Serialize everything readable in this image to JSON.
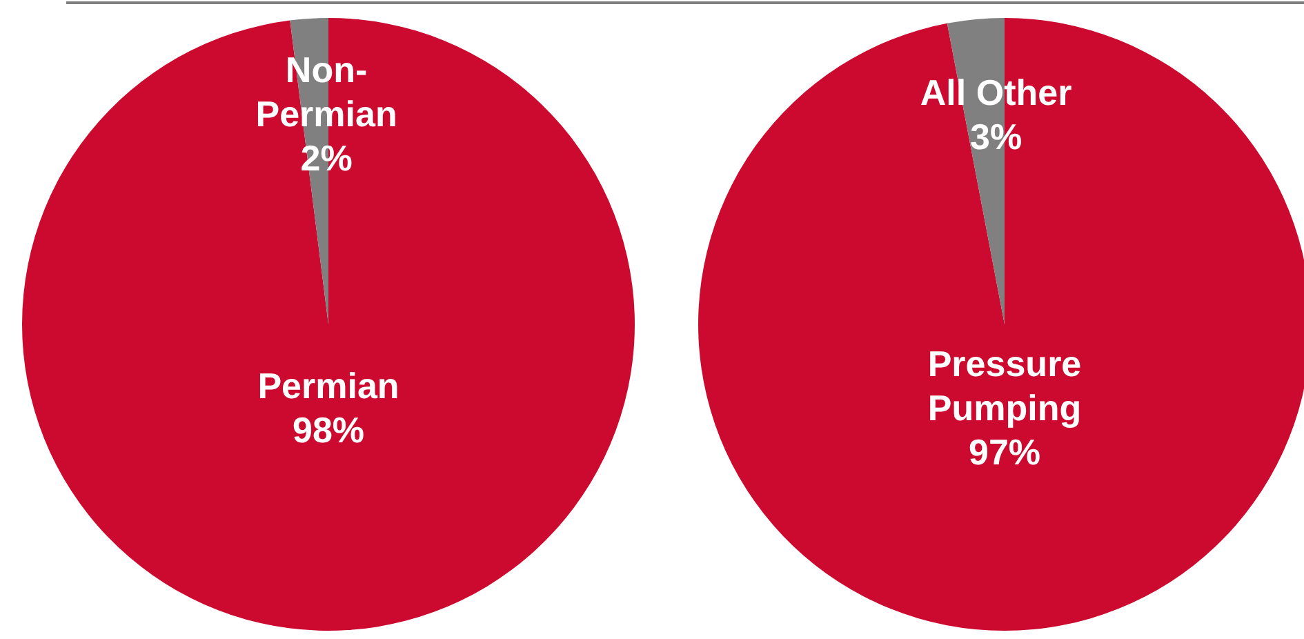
{
  "chart_data": [
    {
      "type": "pie",
      "categories": [
        "Permian",
        "Non-Permian"
      ],
      "values": [
        98,
        2
      ],
      "colors": [
        "#cc0a2f",
        "#808080"
      ],
      "value_labels": [
        "98%",
        "2%"
      ]
    },
    {
      "type": "pie",
      "categories": [
        "Pressure Pumping",
        "All Other"
      ],
      "values": [
        97,
        3
      ],
      "colors": [
        "#cc0a2f",
        "#808080"
      ],
      "value_labels": [
        "97%",
        "3%"
      ]
    }
  ]
}
